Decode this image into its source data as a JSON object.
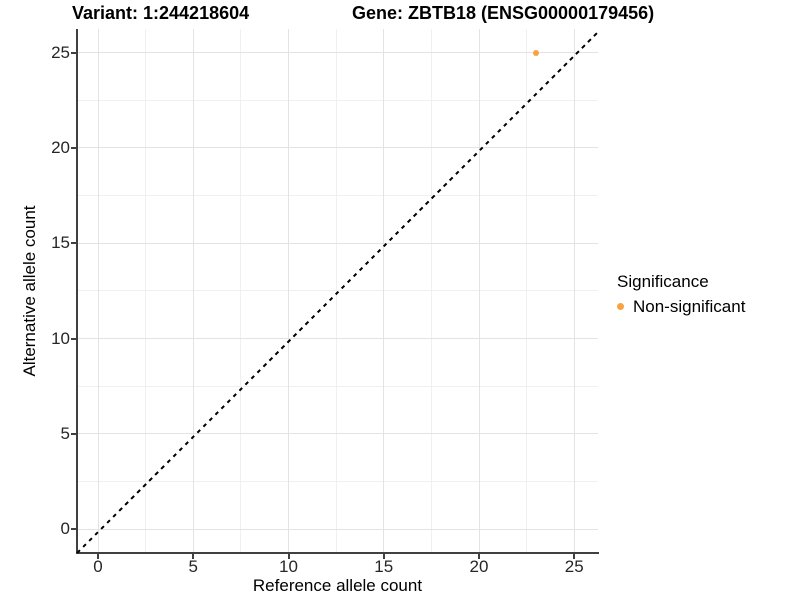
{
  "title": {
    "variant": "Variant: 1:244218604",
    "gene": "Gene: ZBTB18 (ENSG00000179456)"
  },
  "chart_data": {
    "type": "scatter",
    "title": "Variant: 1:244218604    Gene: ZBTB18 (ENSG00000179456)",
    "xlabel": "Reference allele count",
    "ylabel": "Alternative allele count",
    "xlim": [
      -1.2,
      26.2
    ],
    "ylim": [
      -1.2,
      26.2
    ],
    "x_ticks": [
      0,
      5,
      10,
      15,
      20,
      25
    ],
    "y_ticks": [
      0,
      5,
      10,
      15,
      20,
      25
    ],
    "minor_ticks": [
      2.5,
      7.5,
      12.5,
      17.5,
      22.5
    ],
    "grid": "major+minor",
    "points": [
      {
        "x": 23,
        "y": 25,
        "series": "Non-significant",
        "color": "#F9A242"
      }
    ],
    "reference_line": {
      "type": "identity",
      "slope": 1,
      "intercept": 0,
      "style": "dashed",
      "color": "#000000"
    },
    "legend": {
      "title": "Significance",
      "position": "right",
      "items": [
        {
          "label": "Non-significant",
          "color": "#F9A242"
        }
      ]
    }
  },
  "colors": {
    "point_orange": "#F9A242",
    "axis_line": "#404040",
    "grid_major": "#e3e3e3",
    "grid_minor": "#f0f0f0",
    "background": "#ffffff"
  }
}
